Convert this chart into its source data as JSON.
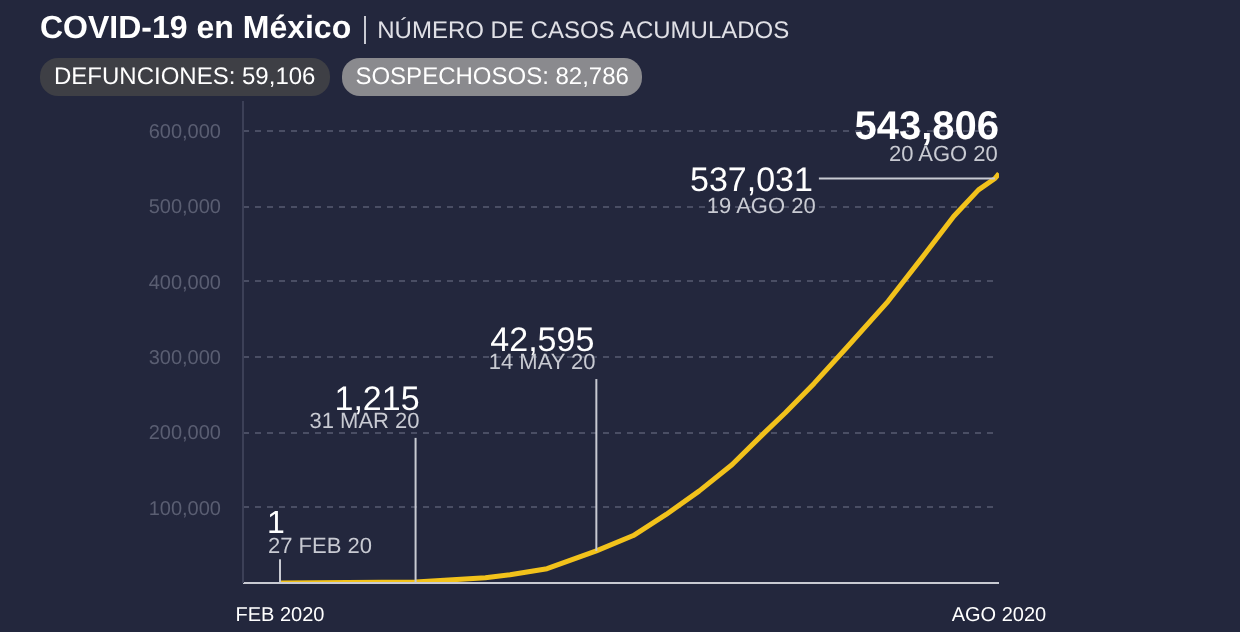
{
  "chart_data": {
    "type": "line",
    "title": "COVID-19 en México",
    "subtitle": "NÚMERO DE CASOS ACUMULADOS",
    "x": [
      "2020-02-27",
      "2020-03-31",
      "2020-04-17",
      "2020-04-23",
      "2020-05-02",
      "2020-05-14",
      "2020-05-23",
      "2020-05-31",
      "2020-06-08",
      "2020-06-16",
      "2020-06-24",
      "2020-06-29",
      "2020-07-06",
      "2020-07-14",
      "2020-07-24",
      "2020-08-01",
      "2020-08-09",
      "2020-08-15",
      "2020-08-19",
      "2020-08-20"
    ],
    "series": [
      {
        "color": "#f2c21b",
        "values": [
          1,
          1215,
          7000,
          11000,
          19000,
          42595,
          63000,
          91000,
          122000,
          157000,
          200000,
          226000,
          265000,
          313000,
          374000,
          430000,
          487000,
          522000,
          537031,
          543806
        ]
      }
    ],
    "xlim": [
      "2020-02-18",
      "2020-08-20"
    ],
    "xticks": [
      {
        "value": "2020-02-27",
        "label": "FEB 2020"
      },
      {
        "value": "2020-08-20",
        "label": "AGO 2020"
      }
    ],
    "ylim": [
      0,
      640000
    ],
    "yticks": [
      {
        "value": 0,
        "label": null
      },
      {
        "value": 100000,
        "label": "100,000"
      },
      {
        "value": 200000,
        "label": "200,000"
      },
      {
        "value": 300000,
        "label": "300,000"
      },
      {
        "value": 400000,
        "label": "400,000"
      },
      {
        "value": 500000,
        "label": "500,000"
      },
      {
        "value": 600000,
        "label": "600,000"
      }
    ],
    "grid": "y",
    "marker": "none",
    "line_style": "solid",
    "annotations": [
      "DEFUNCIONES: 59,106",
      "SOSPECHOSOS: 82,786",
      {
        "text": "1",
        "x": "2020-02-27",
        "y": 1
      },
      {
        "text": "27 FEB 20",
        "x": "2020-02-27",
        "y": 1
      },
      {
        "text": "1,215",
        "x": "2020-03-31",
        "y": 1215
      },
      {
        "text": "31 MAR 20",
        "x": "2020-03-31",
        "y": 1215
      },
      {
        "text": "42,595",
        "x": "2020-05-14",
        "y": 42595
      },
      {
        "text": "14 MAY 20",
        "x": "2020-05-14",
        "y": 42595
      },
      {
        "text": "537,031",
        "x": "2020-08-19",
        "y": 537031
      },
      {
        "text": "19 AGO 20",
        "x": "2020-08-19",
        "y": 537031
      },
      {
        "text": "543,806",
        "x": "2020-08-20",
        "y": 543806
      },
      {
        "text": "20 AGO 20",
        "x": "2020-08-20",
        "y": 543806
      }
    ]
  }
}
